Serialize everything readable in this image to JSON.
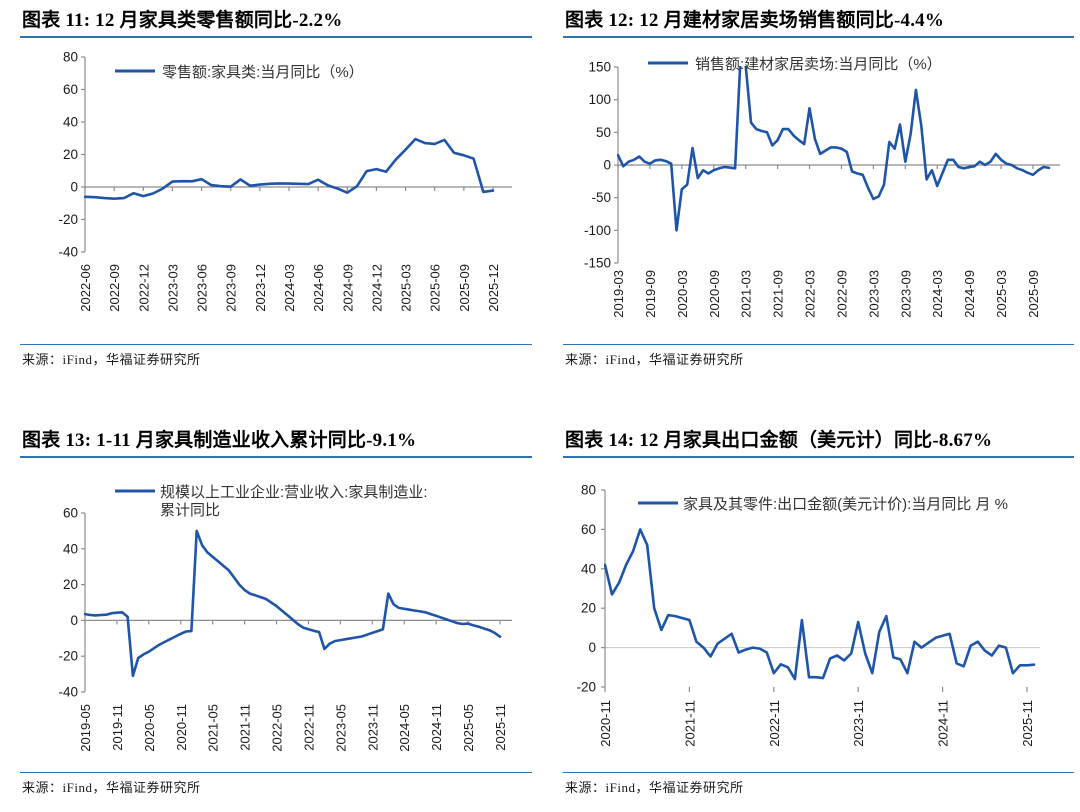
{
  "source_text": "来源：iFind，华福证券研究所",
  "colors": {
    "series_line": "#1f55a8",
    "title_underline": "#2e74b5",
    "axis_gray": "#8c8c8c",
    "zero_line_light": "#c8c8c8",
    "text": "#1a1a1a"
  },
  "chart_data": [
    {
      "type": "line",
      "title": "图表 11:  12 月家具类零售额同比-2.2%",
      "legend_lines": [
        "零售额:家具类:当月同比（%）"
      ],
      "x_monthly_start": "2022-06",
      "x_labels": [
        "2022-06",
        "2022-09",
        "2022-12",
        "2023-03",
        "2023-06",
        "2023-09",
        "2023-12",
        "2024-03",
        "2024-06",
        "2024-09",
        "2024-12",
        "2025-03",
        "2025-06",
        "2025-09",
        "2025-12"
      ],
      "x_tick_interval_months": 3,
      "y_ticks": [
        80,
        60,
        40,
        20,
        0,
        -20,
        -40
      ],
      "ylim": [
        -40,
        80
      ],
      "unit": "%",
      "values": [
        -6.0,
        -6.3,
        -6.8,
        -7.2,
        -6.8,
        -3.8,
        -5.6,
        -4.0,
        -1.0,
        3.3,
        3.6,
        3.5,
        4.8,
        1.2,
        0.5,
        0.2,
        4.7,
        0.8,
        1.5,
        2.0,
        2.2,
        2.1,
        2.0,
        1.8,
        4.5,
        1.0,
        -1.0,
        -3.5,
        0.5,
        9.8,
        11.0,
        9.4,
        17.0,
        23.0,
        29.5,
        27.0,
        26.5,
        29.0,
        21.0,
        19.5,
        17.5,
        -3.0,
        -2.2
      ]
    },
    {
      "type": "line",
      "title": "图表 12:  12 月建材家居卖场销售额同比-4.4%",
      "legend_lines": [
        "销售额:建材家居卖场:当月同比（%）"
      ],
      "x_monthly_start": "2019-03",
      "x_labels": [
        "2019-03",
        "2019-09",
        "2020-03",
        "2020-09",
        "2021-03",
        "2021-09",
        "2022-03",
        "2022-09",
        "2023-03",
        "2023-09",
        "2024-03",
        "2024-09",
        "2025-03",
        "2025-09"
      ],
      "x_tick_interval_months": 6,
      "y_ticks": [
        150,
        100,
        50,
        0,
        -50,
        -100,
        -150
      ],
      "ylim": [
        -150,
        150
      ],
      "unit": "%",
      "values": [
        15,
        -2,
        5,
        8,
        13,
        5,
        2,
        7,
        8,
        6,
        2,
        -100,
        -37,
        -30,
        26,
        -20,
        -8,
        -13,
        -8,
        -5,
        -3,
        -4,
        -5,
        160,
        152,
        65,
        55,
        52,
        50,
        30,
        38,
        55,
        55,
        45,
        38,
        32,
        87,
        40,
        17,
        22,
        27,
        27,
        25,
        20,
        -10,
        -13,
        -15,
        -35,
        -52,
        -48,
        -30,
        35,
        25,
        62,
        5,
        47,
        115,
        60,
        -22,
        -8,
        -32,
        -12,
        8,
        8,
        -3,
        -5,
        -3,
        -2,
        5,
        0,
        5,
        17,
        8,
        2,
        0,
        -5,
        -8,
        -12,
        -15,
        -8,
        -3,
        -4.4
      ]
    },
    {
      "type": "line",
      "title": "图表 13:  1-11 月家具制造业收入累计同比-9.1%",
      "legend_lines": [
        "规模以上工业企业:营业收入:家具制造业:",
        "累计同比"
      ],
      "x_monthly_start": "2019-05",
      "x_labels": [
        "2019-05",
        "2019-11",
        "2020-05",
        "2020-11",
        "2021-05",
        "2021-11",
        "2022-05",
        "2022-11",
        "2023-05",
        "2023-11",
        "2024-05",
        "2024-11",
        "2025-05",
        "2025-11"
      ],
      "x_tick_interval_months": 6,
      "y_ticks": [
        60,
        40,
        20,
        0,
        -20,
        -40
      ],
      "ylim": [
        -40,
        60
      ],
      "unit": "%",
      "values": [
        3.5,
        3.0,
        2.8,
        3.0,
        3.2,
        4.0,
        4.3,
        4.5,
        2.0,
        -31,
        -21,
        -19,
        -17.5,
        -15.5,
        -13.5,
        -12,
        -10.5,
        -9,
        -7.5,
        -6.2,
        -6.0,
        50,
        42,
        38,
        35.5,
        33,
        30.5,
        28,
        24,
        20,
        17,
        15,
        14,
        13,
        12,
        10,
        8,
        5.5,
        3,
        0.5,
        -2,
        -4,
        -5,
        -5.8,
        -6.5,
        -16,
        -13,
        -11.5,
        -11,
        -10.5,
        -10,
        -9.5,
        -9,
        -8,
        -7,
        -6,
        -5,
        15,
        9,
        7,
        6.5,
        6,
        5.5,
        5,
        4.5,
        3.5,
        2.5,
        1.5,
        0.5,
        -0.5,
        -1.5,
        -2,
        -1.8,
        -2.8,
        -3.5,
        -4.5,
        -5.5,
        -7,
        -9.1
      ]
    },
    {
      "type": "line",
      "title": "图表 14:  12 月家具出口金额（美元计）同比-8.67%",
      "legend_lines": [
        "家具及其零件:出口金额(美元计价):当月同比 月 %"
      ],
      "x_monthly_start": "2020-11",
      "x_labels": [
        "2020-11",
        "2021-11",
        "2022-11",
        "2023-11",
        "2024-11",
        "2025-11"
      ],
      "x_tick_interval_months": 12,
      "y_ticks": [
        80,
        60,
        40,
        20,
        0,
        -20
      ],
      "ylim": [
        -20,
        80
      ],
      "unit": "%",
      "values": [
        42,
        27,
        33,
        42,
        49,
        60,
        52,
        20,
        9,
        16.5,
        16,
        15,
        14,
        3,
        0,
        -4.5,
        2,
        4.5,
        7,
        -2.5,
        -1,
        0,
        -0.5,
        -2.5,
        -13,
        -8.5,
        -10,
        -16,
        14,
        -15,
        -15,
        -15.5,
        -5.5,
        -4,
        -6.5,
        -3,
        13,
        -3,
        -13,
        8,
        16,
        -5,
        -6,
        -13,
        3,
        0,
        2.5,
        5,
        6,
        7,
        -8,
        -9.5,
        1,
        3,
        -1.5,
        -4,
        1,
        0,
        -13,
        -9,
        -9,
        -8.67
      ]
    }
  ]
}
